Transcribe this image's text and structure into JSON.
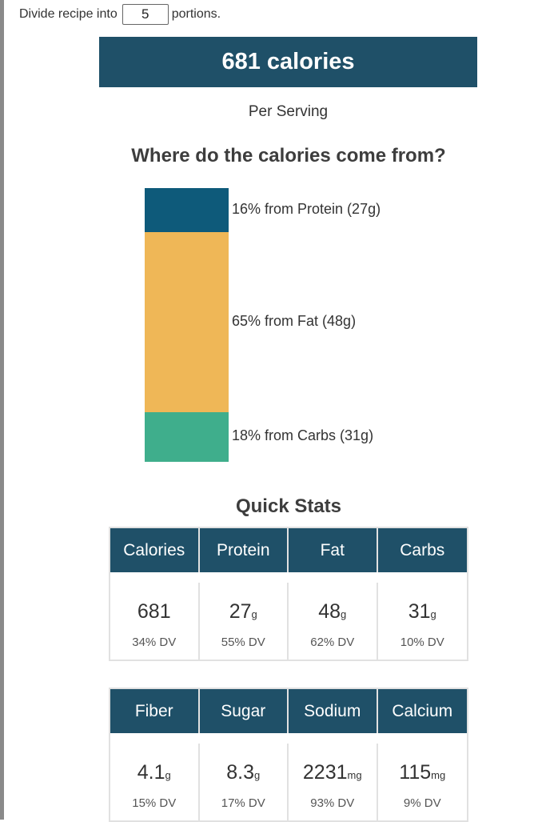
{
  "portions": {
    "prefix": "Divide recipe into",
    "value": "5",
    "suffix": "portions."
  },
  "calories_banner": "681 calories",
  "per_serving": "Per Serving",
  "where_title": "Where do the calories come from?",
  "breakdown": [
    {
      "label": "16% from Protein (27g)",
      "percent": 16,
      "color": "#0e5a7a"
    },
    {
      "label": "65% from Fat (48g)",
      "percent": 65,
      "color": "#efb757"
    },
    {
      "label": "18% from Carbs (31g)",
      "percent": 18,
      "color": "#3fae8c"
    }
  ],
  "quick_stats_title": "Quick Stats",
  "table1": {
    "headers": [
      "Calories",
      "Protein",
      "Fat",
      "Carbs"
    ],
    "values": [
      {
        "value": "681",
        "unit": "",
        "dv": "34% DV"
      },
      {
        "value": "27",
        "unit": "g",
        "dv": "55% DV"
      },
      {
        "value": "48",
        "unit": "g",
        "dv": "62% DV"
      },
      {
        "value": "31",
        "unit": "g",
        "dv": "10% DV"
      }
    ]
  },
  "table2": {
    "headers": [
      "Fiber",
      "Sugar",
      "Sodium",
      "Calcium"
    ],
    "values": [
      {
        "value": "4.1",
        "unit": "g",
        "dv": "15% DV"
      },
      {
        "value": "8.3",
        "unit": "g",
        "dv": "17% DV"
      },
      {
        "value": "2231",
        "unit": "mg",
        "dv": "93% DV"
      },
      {
        "value": "115",
        "unit": "mg",
        "dv": "9% DV"
      }
    ]
  }
}
